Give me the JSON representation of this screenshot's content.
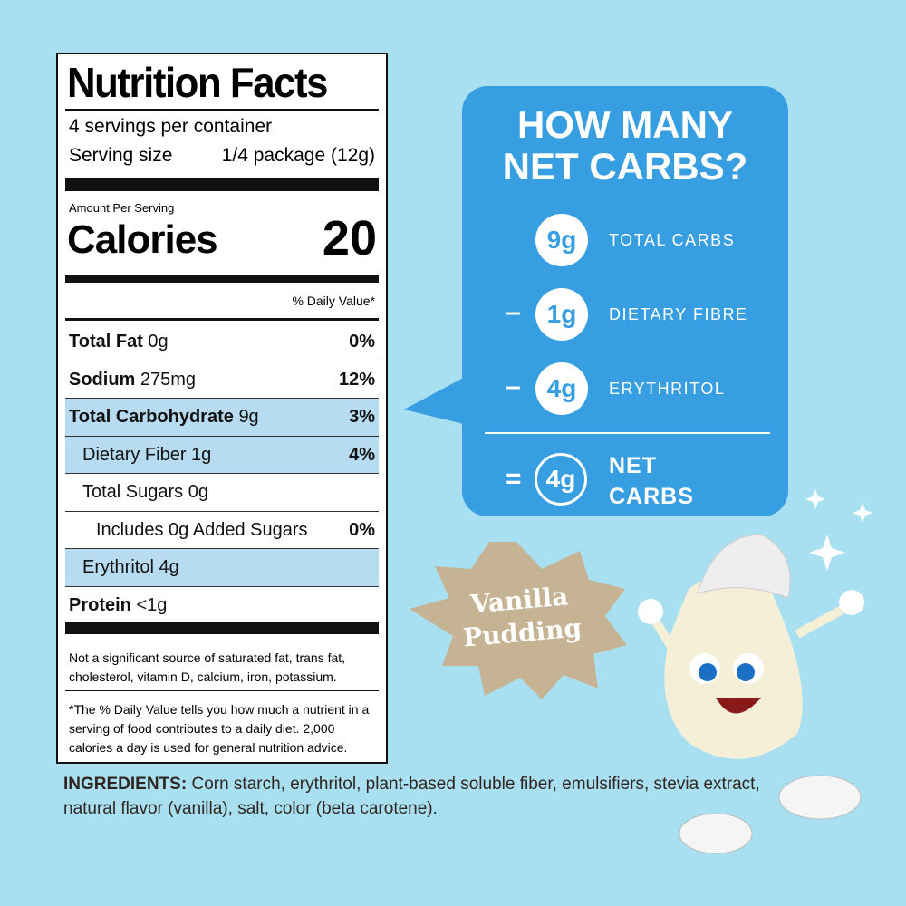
{
  "label": {
    "title": "Nutrition Facts",
    "servings": "4 servings per container",
    "serving_size_label": "Serving size",
    "serving_size": "1/4 package (12g)",
    "amount_per_serving": "Amount Per Serving",
    "calories_label": "Calories",
    "calories": 20,
    "daily_value_header": "% Daily Value*",
    "rows": [
      {
        "name": "Total Fat",
        "amount": "0g",
        "dv": "0%",
        "bold": true
      },
      {
        "name": "Sodium",
        "amount": "275mg",
        "dv": "12%",
        "bold": true
      },
      {
        "name": "Total Carbohydrate",
        "amount": "9g",
        "dv": "3%",
        "bold": true,
        "highlight": true
      },
      {
        "name": "Dietary Fiber",
        "amount": "1g",
        "dv": "4%",
        "indent": 1,
        "highlight": true
      },
      {
        "name": "Total Sugars",
        "amount": "0g",
        "indent": 1
      },
      {
        "name": "Includes 0g Added Sugars",
        "dv": "0%",
        "indent": 2
      },
      {
        "name": "Erythritol",
        "amount": "4g",
        "indent": 1,
        "highlight": true
      },
      {
        "name": "Protein",
        "amount": "<1g",
        "bold": true
      }
    ],
    "footnote_1": "Not a significant source of saturated fat, trans fat, cholesterol, vitamin D, calcium, iron, potassium.",
    "footnote_2": "*The % Daily Value tells you how much a nutrient in a serving of food contributes to a daily diet. 2,000 calories a day is used for general nutrition advice."
  },
  "net_carbs": {
    "title_1": "HOW MANY",
    "title_2": "NET CARBS?",
    "items": [
      {
        "value": "9g",
        "label": "TOTAL CARBS"
      },
      {
        "op": "–",
        "value": "1g",
        "label": "DIETARY FIBRE"
      },
      {
        "op": "–",
        "value": "4g",
        "label": "ERYTHRITOL"
      }
    ],
    "result_op": "=",
    "result_value": "4g",
    "result_label_1": "NET",
    "result_label_2": "CARBS"
  },
  "badge": {
    "line_1": "Vanilla",
    "line_2": "Pudding"
  },
  "ingredients": {
    "label": "INGREDIENTS:",
    "text": "Corn starch, erythritol, plant-based soluble fiber, emulsifiers, stevia extract, natural flavor (vanilla), salt, color (beta carotene)."
  }
}
